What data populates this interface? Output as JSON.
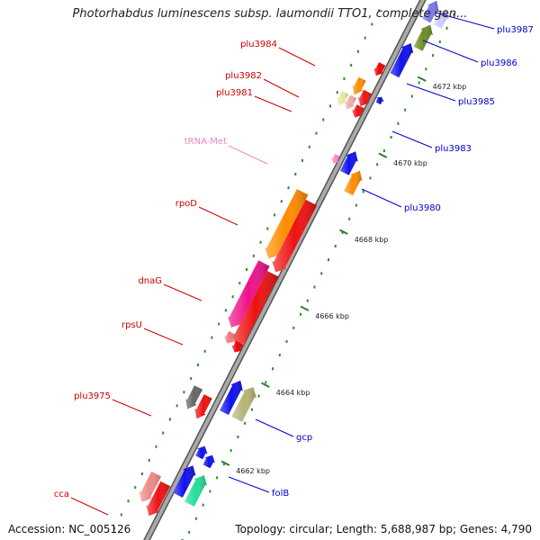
{
  "title": "Photorhabdus luminescens subsp. laumondii TTO1, complete gen...",
  "footer": {
    "accession": "Accession: NC_005126",
    "topology": "Topology: circular; Length: 5,688,987 bp; Genes: 4,790"
  },
  "colors": {
    "forward_label": "#0000cc",
    "reverse_label": "#cc0000",
    "trna_label": "#ee88bb",
    "backbone": "#999999",
    "tick": "#2e7d32"
  },
  "ticks": [
    "4660 kbp",
    "4662 kbp",
    "4664 kbp",
    "4666 kbp",
    "4668 kbp",
    "4670 kbp",
    "4672 kbp"
  ],
  "labels": {
    "plu3987": "plu3987",
    "plu3986": "plu3986",
    "plu3985": "plu3985",
    "plu3983": "plu3983",
    "plu3980": "plu3980",
    "gcp": "gcp",
    "folB": "folB",
    "plu3984": "plu3984",
    "plu3982": "plu3982",
    "plu3981": "plu3981",
    "tRNA-Met": "tRNA-Met",
    "rpoD": "rpoD",
    "dnaG": "dnaG",
    "rpsU": "rpsU",
    "plu3975": "plu3975",
    "cca": "cca"
  }
}
